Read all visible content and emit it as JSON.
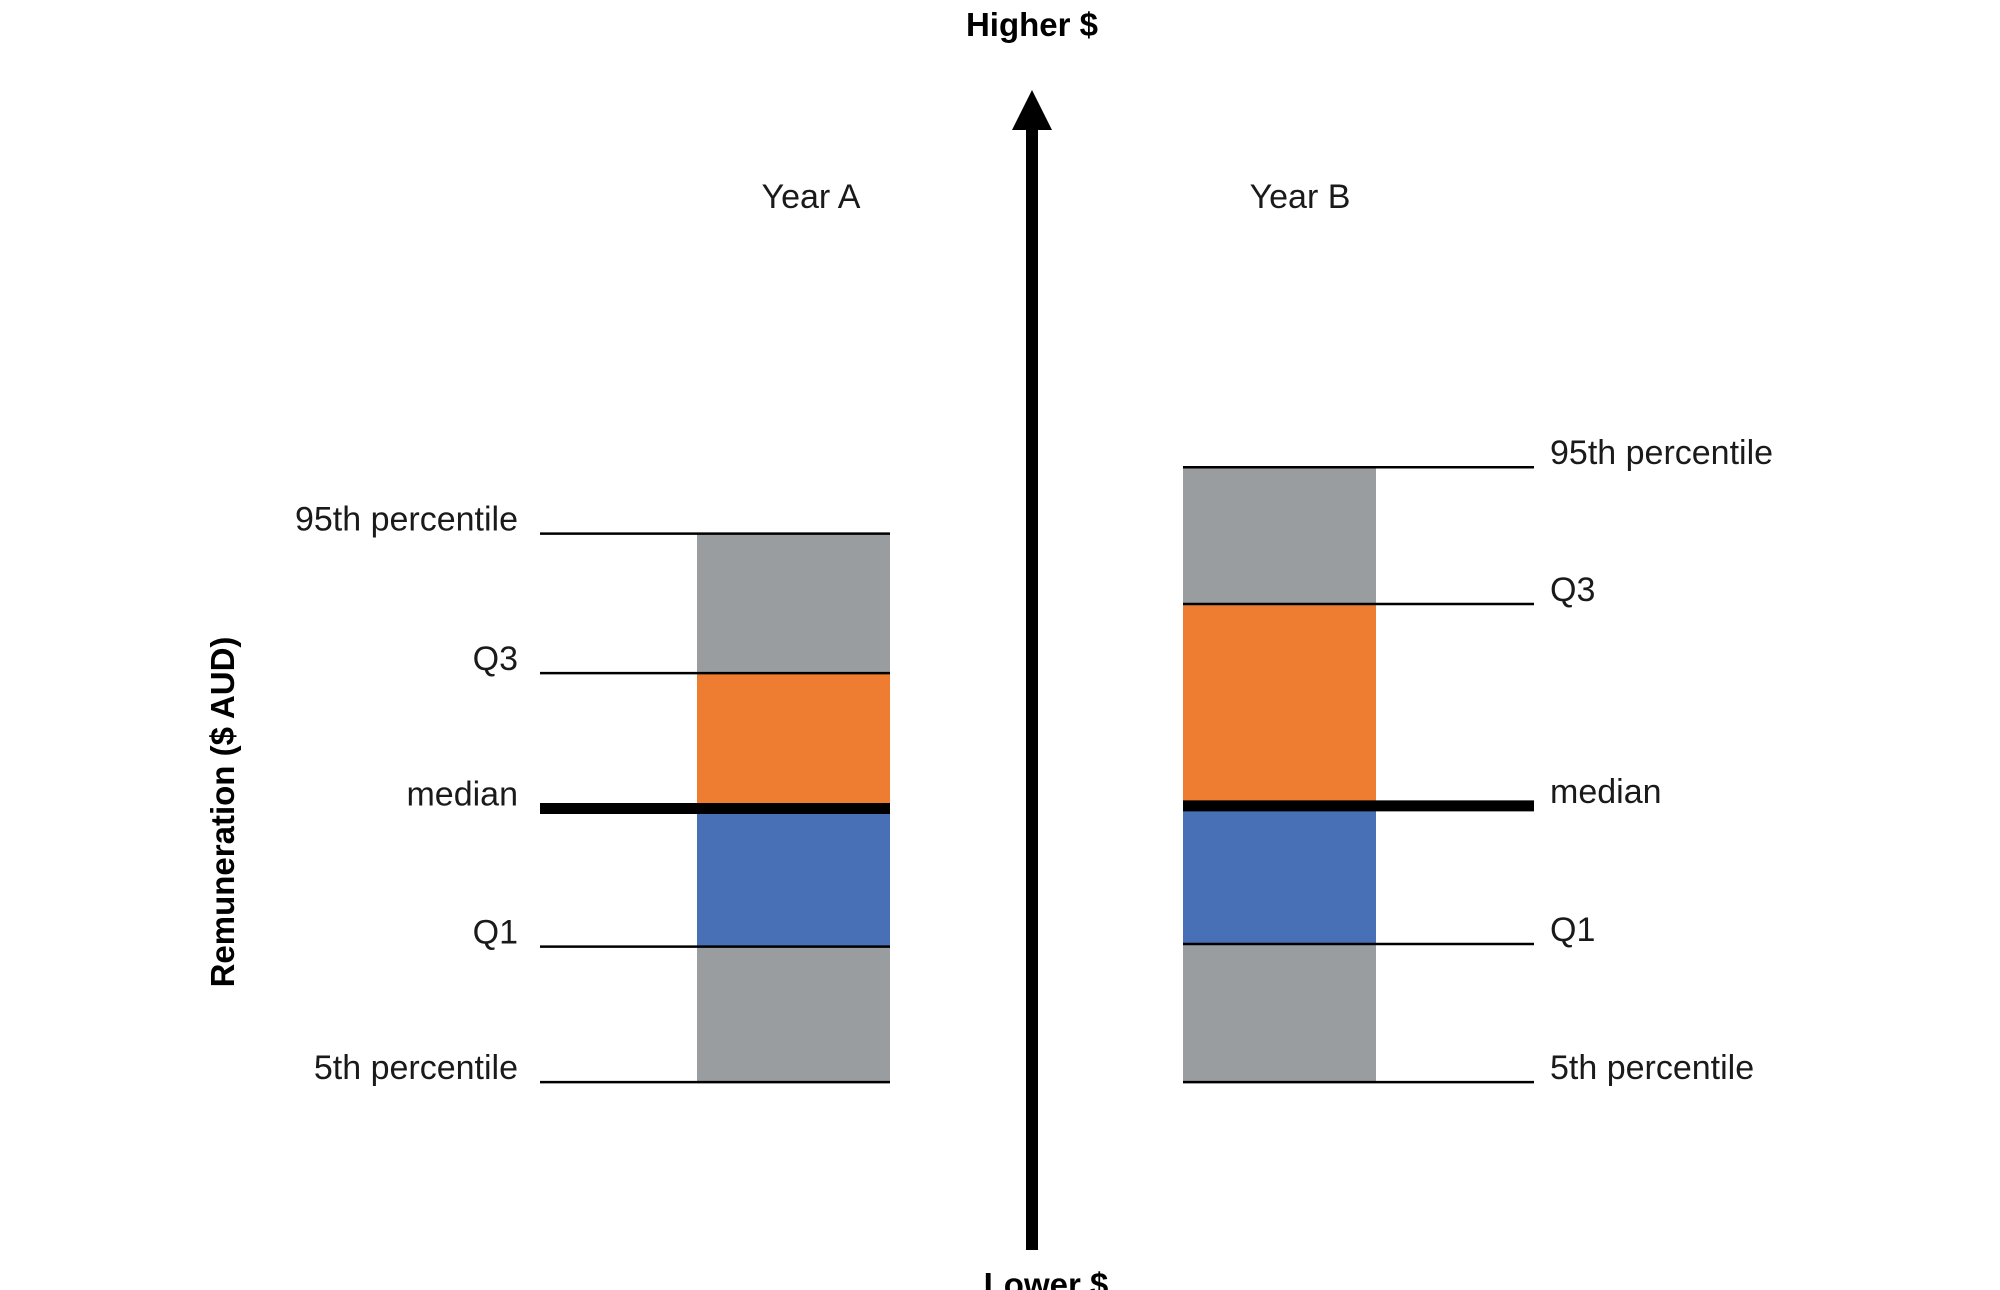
{
  "axis": {
    "top_label": "Higher $",
    "bottom_label": "Lower $",
    "vertical_label": "Remuneration ($ AUD)"
  },
  "colors": {
    "tail": "#9a9d9f",
    "upper_quartile": "#ee7d31",
    "lower_quartile": "#4870b7",
    "median_line": "#000000",
    "marker_line": "#000000",
    "arrow": "#000000"
  },
  "columns": [
    {
      "year": "Year A",
      "levels": {
        "p95": 0.62,
        "q3": 0.515,
        "median": 0.413,
        "q1": 0.309,
        "p5": 0.207
      },
      "labels": {
        "p95": "95th percentile",
        "q3": "Q3",
        "median": "median",
        "q1": "Q1",
        "p5": "5th percentile"
      }
    },
    {
      "year": "Year B",
      "levels": {
        "p95": 0.67,
        "q3": 0.567,
        "median": 0.415,
        "q1": 0.311,
        "p5": 0.207
      },
      "labels": {
        "p95": "95th percentile",
        "q3": "Q3",
        "median": "median",
        "q1": "Q1",
        "p5": "5th percentile"
      }
    }
  ]
}
